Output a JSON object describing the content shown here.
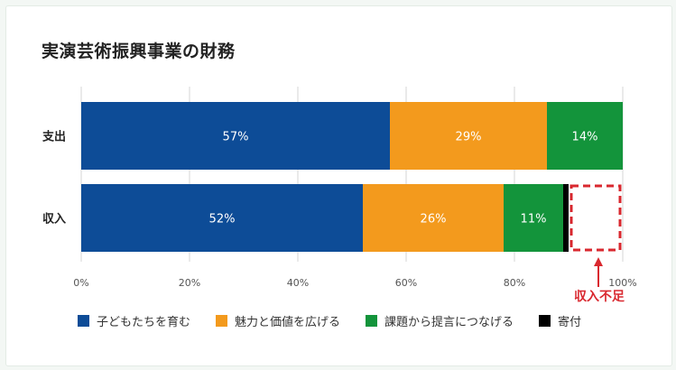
{
  "title": "実演芸術振興事業の財務",
  "chart_data": {
    "type": "bar",
    "orientation": "horizontal",
    "stacked": true,
    "categories": [
      "支出",
      "収入"
    ],
    "series": [
      {
        "name": "子どもたちを育む",
        "color": "#0d4c97",
        "values": [
          57,
          52
        ],
        "labels": [
          "57%",
          "52%"
        ]
      },
      {
        "name": "魅力と価値を広げる",
        "color": "#f39a1d",
        "values": [
          29,
          26
        ],
        "labels": [
          "29%",
          "26%"
        ]
      },
      {
        "name": "課題から提言につなげる",
        "color": "#13943b",
        "values": [
          14,
          11
        ],
        "labels": [
          "14%",
          "11%"
        ]
      },
      {
        "name": "寄付",
        "color": "#000000",
        "values": [
          0,
          1
        ],
        "labels": [
          "",
          ""
        ]
      }
    ],
    "xlim": [
      0,
      100
    ],
    "x_ticks": [
      0,
      20,
      40,
      60,
      80,
      100
    ],
    "x_tick_labels": [
      "0%",
      "20%",
      "40%",
      "60%",
      "80%",
      "100%"
    ],
    "grid": true,
    "legend_position": "bottom",
    "annotation": {
      "text": "収入不足",
      "category": "収入",
      "from": 90,
      "to": 100,
      "color": "#d9282f"
    }
  }
}
